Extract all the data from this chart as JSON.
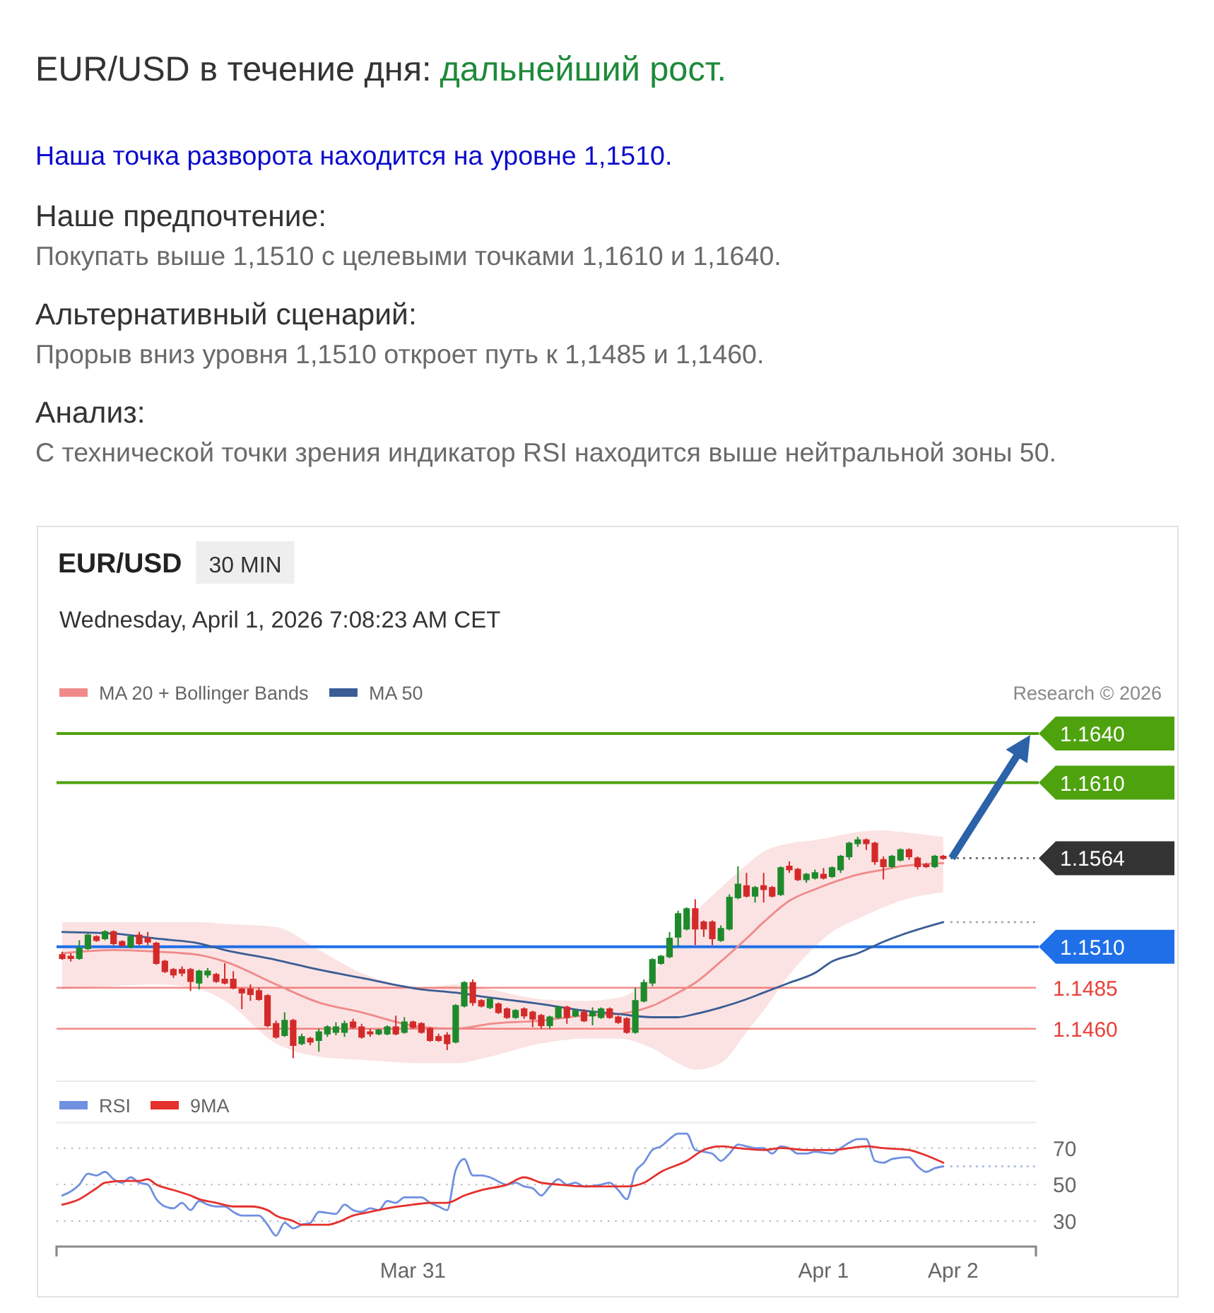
{
  "chart_data": [
    {
      "type": "other",
      "title": "EUR/USD в течение дня:",
      "subtitle": "дальнейший рост.",
      "annotations": [
        "Наша точка разворота находится на уровне 1,1510.",
        "Наше предпочтение:",
        "Покупать выше 1,1510 с целевыми точками 1,1610 и 1,1640.",
        "Альтернативный сценарий:",
        "Прорыв вниз уровня 1,1510 откроет путь к 1,1485 и 1,1460.",
        "Анализ:",
        "С технической точки зрения индикатор RSI находится выше нейтральной зоны 50."
      ]
    },
    {
      "type": "candlestick",
      "title": "EUR/USD",
      "subtitle": "30 MIN",
      "annotations": [
        "Wednesday, April 1, 2026 7:08:23 AM CET",
        "Research © 2026"
      ],
      "legend": "top left",
      "xlim": [
        "2026-03-30T03:10",
        "2026-04-01T12:25"
      ],
      "ylim": [
        1.1428,
        1.164
      ],
      "x": [
        "2026-03-30T03:30",
        "2026-03-30T04:00",
        "2026-03-30T04:30",
        "2026-03-30T05:00",
        "2026-03-30T05:30",
        "2026-03-30T06:00",
        "2026-03-30T06:30",
        "2026-03-30T07:00",
        "2026-03-30T07:30",
        "2026-03-30T08:00",
        "2026-03-30T08:30",
        "2026-03-30T09:00",
        "2026-03-30T09:30",
        "2026-03-30T10:00",
        "2026-03-30T10:30",
        "2026-03-30T11:00",
        "2026-03-30T11:30",
        "2026-03-30T12:00",
        "2026-03-30T12:30",
        "2026-03-30T13:00",
        "2026-03-30T13:30",
        "2026-03-30T14:00",
        "2026-03-30T14:30",
        "2026-03-30T15:00",
        "2026-03-30T15:30",
        "2026-03-30T16:00",
        "2026-03-30T16:30",
        "2026-03-30T17:00",
        "2026-03-30T17:30",
        "2026-03-30T18:00",
        "2026-03-30T18:30",
        "2026-03-30T19:00",
        "2026-03-30T19:30",
        "2026-03-30T20:00",
        "2026-03-30T20:30",
        "2026-03-30T21:00",
        "2026-03-30T21:30",
        "2026-03-30T22:00",
        "2026-03-30T22:30",
        "2026-03-30T23:00",
        "2026-03-30T23:30",
        "2026-03-31T00:00",
        "2026-03-31T00:30",
        "2026-03-31T01:00",
        "2026-03-31T01:30",
        "2026-03-31T02:00",
        "2026-03-31T02:30",
        "2026-03-31T03:00",
        "2026-03-31T03:30",
        "2026-03-31T04:00",
        "2026-03-31T04:30",
        "2026-03-31T05:00",
        "2026-03-31T05:30",
        "2026-03-31T06:00",
        "2026-03-31T06:30",
        "2026-03-31T07:00",
        "2026-03-31T07:30",
        "2026-03-31T08:00",
        "2026-03-31T08:30",
        "2026-03-31T09:00",
        "2026-03-31T09:30",
        "2026-03-31T10:00",
        "2026-03-31T10:30",
        "2026-03-31T11:00",
        "2026-03-31T11:30",
        "2026-03-31T12:00",
        "2026-03-31T12:30",
        "2026-03-31T13:00",
        "2026-03-31T13:30",
        "2026-03-31T14:00",
        "2026-03-31T14:30",
        "2026-03-31T15:00",
        "2026-03-31T15:30",
        "2026-03-31T16:00",
        "2026-03-31T16:30",
        "2026-03-31T17:00",
        "2026-03-31T17:30",
        "2026-03-31T18:00",
        "2026-03-31T18:30",
        "2026-03-31T19:00",
        "2026-03-31T19:30",
        "2026-03-31T20:00",
        "2026-03-31T20:30",
        "2026-03-31T21:00",
        "2026-03-31T21:30",
        "2026-03-31T22:00",
        "2026-03-31T22:30",
        "2026-03-31T23:00",
        "2026-03-31T23:30",
        "2026-04-01T00:00",
        "2026-04-01T00:30",
        "2026-04-01T01:00",
        "2026-04-01T01:30",
        "2026-04-01T02:00",
        "2026-04-01T02:30",
        "2026-04-01T03:00",
        "2026-04-01T03:30",
        "2026-04-01T04:00",
        "2026-04-01T04:30",
        "2026-04-01T05:00",
        "2026-04-01T05:30",
        "2026-04-01T06:00",
        "2026-04-01T06:30",
        "2026-04-01T07:00"
      ],
      "ohlc": [
        [
          1.1505,
          1.1507,
          1.1502,
          1.1503
        ],
        [
          1.1504,
          1.1506,
          1.1501,
          1.1503
        ],
        [
          1.1503,
          1.1514,
          1.1502,
          1.1509
        ],
        [
          1.1509,
          1.1518,
          1.1508,
          1.1517
        ],
        [
          1.1516,
          1.1517,
          1.1513,
          1.1514
        ],
        [
          1.1515,
          1.152,
          1.1514,
          1.1519
        ],
        [
          1.1519,
          1.152,
          1.1511,
          1.1512
        ],
        [
          1.1513,
          1.1514,
          1.151,
          1.1511
        ],
        [
          1.151,
          1.1517,
          1.1509,
          1.1516
        ],
        [
          1.1517,
          1.1519,
          1.1511,
          1.1512
        ],
        [
          1.1515,
          1.1519,
          1.1511,
          1.1513
        ],
        [
          1.1512,
          1.1513,
          1.1499,
          1.15
        ],
        [
          1.1501,
          1.1502,
          1.1494,
          1.1495
        ],
        [
          1.1496,
          1.1497,
          1.1491,
          1.1493
        ],
        [
          1.1496,
          1.1498,
          1.1492,
          1.1494
        ],
        [
          1.1496,
          1.1497,
          1.1483,
          1.1489
        ],
        [
          1.1488,
          1.1496,
          1.1484,
          1.1495
        ],
        [
          1.1493,
          1.1497,
          1.1491,
          1.1495
        ],
        [
          1.1493,
          1.1494,
          1.1488,
          1.1489
        ],
        [
          1.149,
          1.15,
          1.1487,
          1.1488
        ],
        [
          1.149,
          1.1495,
          1.1484,
          1.1485
        ],
        [
          1.1484,
          1.1485,
          1.1472,
          1.1482
        ],
        [
          1.1484,
          1.1487,
          1.1477,
          1.1481
        ],
        [
          1.1483,
          1.1485,
          1.1477,
          1.1478
        ],
        [
          1.148,
          1.1481,
          1.1461,
          1.1462
        ],
        [
          1.1463,
          1.1465,
          1.1454,
          1.1455
        ],
        [
          1.1456,
          1.147,
          1.1455,
          1.1465
        ],
        [
          1.1465,
          1.1466,
          1.1442,
          1.145
        ],
        [
          1.1451,
          1.1457,
          1.145,
          1.1455
        ],
        [
          1.1454,
          1.1455,
          1.145,
          1.1452
        ],
        [
          1.1453,
          1.146,
          1.1446,
          1.1458
        ],
        [
          1.1457,
          1.1462,
          1.1455,
          1.1461
        ],
        [
          1.1458,
          1.1464,
          1.1456,
          1.1461
        ],
        [
          1.1458,
          1.1465,
          1.1455,
          1.1463
        ],
        [
          1.1464,
          1.1466,
          1.146,
          1.1461
        ],
        [
          1.1461,
          1.1463,
          1.1454,
          1.1455
        ],
        [
          1.1458,
          1.146,
          1.1455,
          1.1457
        ],
        [
          1.1457,
          1.146,
          1.1456,
          1.1459
        ],
        [
          1.1457,
          1.1462,
          1.1456,
          1.1461
        ],
        [
          1.1461,
          1.1468,
          1.1456,
          1.1457
        ],
        [
          1.1458,
          1.1467,
          1.1457,
          1.1464
        ],
        [
          1.1464,
          1.1465,
          1.146,
          1.1461
        ],
        [
          1.1463,
          1.1464,
          1.1457,
          1.1458
        ],
        [
          1.146,
          1.1461,
          1.1452,
          1.1453
        ],
        [
          1.1455,
          1.1457,
          1.1452,
          1.1453
        ],
        [
          1.1456,
          1.1458,
          1.1447,
          1.1451
        ],
        [
          1.1452,
          1.1475,
          1.1451,
          1.1474
        ],
        [
          1.1474,
          1.1489,
          1.1473,
          1.1488
        ],
        [
          1.1488,
          1.149,
          1.1474,
          1.1476
        ],
        [
          1.1477,
          1.1478,
          1.1473,
          1.1474
        ],
        [
          1.1473,
          1.1479,
          1.1472,
          1.1478
        ],
        [
          1.1475,
          1.1476,
          1.1469,
          1.147
        ],
        [
          1.1472,
          1.1473,
          1.1466,
          1.1467
        ],
        [
          1.1467,
          1.1472,
          1.1466,
          1.1471
        ],
        [
          1.1472,
          1.1473,
          1.1466,
          1.1468
        ],
        [
          1.147,
          1.1471,
          1.1461,
          1.1466
        ],
        [
          1.1468,
          1.1469,
          1.146,
          1.1462
        ],
        [
          1.1462,
          1.1468,
          1.146,
          1.1467
        ],
        [
          1.1467,
          1.1474,
          1.1466,
          1.1473
        ],
        [
          1.1473,
          1.1474,
          1.1463,
          1.1467
        ],
        [
          1.1468,
          1.1472,
          1.1467,
          1.1471
        ],
        [
          1.147,
          1.1472,
          1.1464,
          1.1465
        ],
        [
          1.1468,
          1.1473,
          1.1462,
          1.147
        ],
        [
          1.1467,
          1.1473,
          1.1466,
          1.1472
        ],
        [
          1.1472,
          1.1473,
          1.1466,
          1.1467
        ],
        [
          1.1467,
          1.1468,
          1.1463,
          1.1464
        ],
        [
          1.1466,
          1.1467,
          1.1457,
          1.1458
        ],
        [
          1.1458,
          1.1485,
          1.1457,
          1.1477
        ],
        [
          1.1477,
          1.149,
          1.1476,
          1.1488
        ],
        [
          1.1488,
          1.1503,
          1.1486,
          1.1502
        ],
        [
          1.15,
          1.1505,
          1.1499,
          1.1504
        ],
        [
          1.1504,
          1.1519,
          1.1503,
          1.1515
        ],
        [
          1.1516,
          1.1532,
          1.151,
          1.153
        ],
        [
          1.1521,
          1.1534,
          1.152,
          1.1533
        ],
        [
          1.1533,
          1.1539,
          1.1511,
          1.1521
        ],
        [
          1.1525,
          1.1526,
          1.1516,
          1.1521
        ],
        [
          1.1525,
          1.1526,
          1.1511,
          1.1515
        ],
        [
          1.1514,
          1.1523,
          1.1513,
          1.1521
        ],
        [
          1.1521,
          1.1542,
          1.152,
          1.154
        ],
        [
          1.154,
          1.1559,
          1.1539,
          1.1548
        ],
        [
          1.1547,
          1.1555,
          1.154,
          1.1541
        ],
        [
          1.1541,
          1.1547,
          1.1537,
          1.1546
        ],
        [
          1.1547,
          1.1555,
          1.1537,
          1.1545
        ],
        [
          1.1546,
          1.1547,
          1.154,
          1.1541
        ],
        [
          1.1542,
          1.1559,
          1.1541,
          1.1558
        ],
        [
          1.1559,
          1.1562,
          1.1555,
          1.1557
        ],
        [
          1.1557,
          1.1558,
          1.155,
          1.1551
        ],
        [
          1.1551,
          1.1555,
          1.1549,
          1.1554
        ],
        [
          1.1552,
          1.1557,
          1.1551,
          1.1555
        ],
        [
          1.1554,
          1.1558,
          1.1551,
          1.1552
        ],
        [
          1.1553,
          1.1559,
          1.1552,
          1.1558
        ],
        [
          1.1557,
          1.1566,
          1.1555,
          1.1565
        ],
        [
          1.1565,
          1.1574,
          1.1563,
          1.1573
        ],
        [
          1.1573,
          1.1577,
          1.1571,
          1.1575
        ],
        [
          1.1575,
          1.1576,
          1.1569,
          1.1573
        ],
        [
          1.1573,
          1.1574,
          1.156,
          1.1562
        ],
        [
          1.1563,
          1.1565,
          1.1551,
          1.1559
        ],
        [
          1.1559,
          1.1566,
          1.1558,
          1.1565
        ],
        [
          1.1563,
          1.157,
          1.1562,
          1.1569
        ],
        [
          1.1569,
          1.157,
          1.1563,
          1.1565
        ],
        [
          1.1564,
          1.1565,
          1.1557,
          1.1559
        ],
        [
          1.156,
          1.1561,
          1.1558,
          1.1559
        ],
        [
          1.1559,
          1.1566,
          1.1558,
          1.1565
        ],
        [
          1.1565,
          1.1566,
          1.1563,
          1.1564
        ]
      ],
      "series": [
        {
          "name": "MA 20 + Bollinger Bands",
          "type": "line",
          "color": "#f08a8a",
          "x": [
            "2026-03-30T03:30",
            "2026-03-30T06:30",
            "2026-03-30T09:00",
            "2026-03-30T11:30",
            "2026-03-30T13:00",
            "2026-03-30T16:00",
            "2026-03-30T18:30",
            "2026-03-30T21:00",
            "2026-03-31T00:30",
            "2026-03-31T02:30",
            "2026-03-31T04:30",
            "2026-03-31T07:30",
            "2026-03-31T10:00",
            "2026-03-31T12:00",
            "2026-03-31T14:00",
            "2026-03-31T15:30",
            "2026-03-31T16:30",
            "2026-03-31T18:00",
            "2026-03-31T19:30",
            "2026-03-31T20:30",
            "2026-03-31T22:00",
            "2026-03-31T23:30",
            "2026-04-01T00:30",
            "2026-04-01T02:00",
            "2026-04-01T03:30",
            "2026-04-01T04:30",
            "2026-04-01T07:00"
          ],
          "values": [
            1.1506,
            1.1508,
            1.1507,
            1.1505,
            1.1501,
            1.1487,
            1.1476,
            1.147,
            1.1461,
            1.146,
            1.1463,
            1.1465,
            1.1468,
            1.1469,
            1.1474,
            1.1482,
            1.1488,
            1.1501,
            1.1515,
            1.1525,
            1.1538,
            1.1545,
            1.1549,
            1.1554,
            1.1557,
            1.1559,
            1.1561
          ],
          "upper": [
            1.1525,
            1.1525,
            1.1525,
            1.1525,
            1.1524,
            1.1522,
            1.1508,
            1.1494,
            1.1485,
            1.1487,
            1.1484,
            1.1478,
            1.1477,
            1.1479,
            1.1493,
            1.1519,
            1.1531,
            1.1546,
            1.156,
            1.1568,
            1.1573,
            1.1575,
            1.1577,
            1.158,
            1.1581,
            1.158,
            1.1577
          ],
          "lower": [
            1.1484,
            1.1486,
            1.1487,
            1.1484,
            1.1477,
            1.1451,
            1.1443,
            1.1441,
            1.1439,
            1.1439,
            1.1443,
            1.1451,
            1.1454,
            1.1454,
            1.1448,
            1.1439,
            1.1435,
            1.1439,
            1.1458,
            1.1471,
            1.1493,
            1.151,
            1.1519,
            1.1527,
            1.1534,
            1.1538,
            1.1543
          ]
        },
        {
          "name": "MA 50",
          "type": "line",
          "color": "#3a5d94",
          "x": [
            "2026-03-30T03:30",
            "2026-03-30T06:30",
            "2026-03-30T09:00",
            "2026-03-30T11:30",
            "2026-03-30T13:00",
            "2026-03-30T16:00",
            "2026-03-30T18:30",
            "2026-03-30T21:00",
            "2026-03-31T00:30",
            "2026-03-31T02:30",
            "2026-03-31T04:30",
            "2026-03-31T07:30",
            "2026-03-31T10:00",
            "2026-03-31T12:00",
            "2026-03-31T14:00",
            "2026-03-31T15:30",
            "2026-03-31T16:30",
            "2026-03-31T18:00",
            "2026-03-31T19:30",
            "2026-03-31T20:30",
            "2026-03-31T22:00",
            "2026-03-31T23:30",
            "2026-04-01T00:30",
            "2026-04-01T02:00",
            "2026-04-01T03:30",
            "2026-04-01T04:30",
            "2026-04-01T07:00"
          ],
          "values": [
            1.1519,
            1.1518,
            1.1515,
            1.1512,
            1.1508,
            1.1502,
            1.1496,
            1.1491,
            1.1484,
            1.1482,
            1.1479,
            1.1475,
            1.1471,
            1.1469,
            1.1467,
            1.1467,
            1.1469,
            1.1473,
            1.1478,
            1.1482,
            1.1488,
            1.1494,
            1.1501,
            1.1506,
            1.1513,
            1.1517,
            1.1525
          ]
        }
      ],
      "ref_lines": [
        {
          "axis": "y",
          "value": 1.164,
          "label": "1.1640",
          "color": "#4ea20e"
        },
        {
          "axis": "y",
          "value": 1.161,
          "label": "1.1610",
          "color": "#4ea20e"
        },
        {
          "axis": "y",
          "value": 1.1564,
          "label": "1.1564",
          "color": "#333333",
          "line_style": "dotted"
        },
        {
          "axis": "y",
          "value": 1.151,
          "label": "1.1510",
          "color": "#1f6fe8"
        },
        {
          "axis": "y",
          "value": 1.1485,
          "label": "1.1485",
          "color": "#e8403a"
        },
        {
          "axis": "y",
          "value": 1.146,
          "label": "1.1460",
          "color": "#e8403a"
        },
        {
          "axis": "y",
          "value": 1.1525,
          "color": "#8a8a8a",
          "line_style": "dotted"
        }
      ]
    },
    {
      "type": "line",
      "legend": "top left",
      "grid": "y",
      "annotations": [
        "Apr 2"
      ],
      "xlim": [
        "2026-03-30T03:10",
        "2026-04-01T12:25"
      ],
      "ylim": [
        16,
        84
      ],
      "yticks": [
        30,
        50,
        70
      ],
      "xticks": [
        {
          "value": "2026-03-31T00:00",
          "label": "Mar 31"
        },
        {
          "value": "2026-04-01T00:00",
          "label": "Apr 1"
        }
      ],
      "series": [
        {
          "name": "RSI",
          "color": "#7090e0",
          "x": [
            "2026-03-30T03:30",
            "2026-03-30T04:30",
            "2026-03-30T05:00",
            "2026-03-30T05:30",
            "2026-03-30T06:00",
            "2026-03-30T06:30",
            "2026-03-30T07:00",
            "2026-03-30T07:30",
            "2026-03-30T08:00",
            "2026-03-30T08:30",
            "2026-03-30T09:00",
            "2026-03-30T09:30",
            "2026-03-30T10:00",
            "2026-03-30T10:30",
            "2026-03-30T11:00",
            "2026-03-30T11:30",
            "2026-03-30T12:00",
            "2026-03-30T12:30",
            "2026-03-30T13:00",
            "2026-03-30T13:30",
            "2026-03-30T14:00",
            "2026-03-30T15:00",
            "2026-03-30T15:30",
            "2026-03-30T16:00",
            "2026-03-30T16:30",
            "2026-03-30T17:00",
            "2026-03-30T17:30",
            "2026-03-30T18:00",
            "2026-03-30T18:30",
            "2026-03-30T19:30",
            "2026-03-30T20:00",
            "2026-03-30T20:30",
            "2026-03-30T21:00",
            "2026-03-30T21:30",
            "2026-03-30T22:00",
            "2026-03-30T22:30",
            "2026-03-30T23:00",
            "2026-03-30T23:30",
            "2026-03-31T00:30",
            "2026-03-31T01:00",
            "2026-03-31T01:30",
            "2026-03-31T02:00",
            "2026-03-31T02:30",
            "2026-03-31T03:00",
            "2026-03-31T03:30",
            "2026-03-31T04:00",
            "2026-03-31T04:30",
            "2026-03-31T05:30",
            "2026-03-31T06:00",
            "2026-03-31T06:30",
            "2026-03-31T07:00",
            "2026-03-31T07:30",
            "2026-03-31T08:00",
            "2026-03-31T08:30",
            "2026-03-31T09:00",
            "2026-03-31T09:30",
            "2026-03-31T10:00",
            "2026-03-31T11:00",
            "2026-03-31T11:30",
            "2026-03-31T12:00",
            "2026-03-31T12:30",
            "2026-03-31T13:00",
            "2026-03-31T13:30",
            "2026-03-31T14:00",
            "2026-03-31T14:30",
            "2026-03-31T15:00",
            "2026-03-31T15:30",
            "2026-03-31T16:00",
            "2026-03-31T16:30",
            "2026-03-31T17:00",
            "2026-03-31T17:30",
            "2026-03-31T18:00",
            "2026-03-31T18:30",
            "2026-03-31T19:00",
            "2026-03-31T19:30",
            "2026-03-31T20:00",
            "2026-03-31T20:30",
            "2026-03-31T21:00",
            "2026-03-31T21:30",
            "2026-03-31T22:00",
            "2026-03-31T22:30",
            "2026-03-31T23:00",
            "2026-03-31T23:30",
            "2026-04-01T00:30",
            "2026-04-01T01:00",
            "2026-04-01T01:30",
            "2026-04-01T02:00",
            "2026-04-01T02:30",
            "2026-04-01T03:00",
            "2026-04-01T03:30",
            "2026-04-01T04:00",
            "2026-04-01T05:00",
            "2026-04-01T05:30",
            "2026-04-01T06:00",
            "2026-04-01T06:30",
            "2026-04-01T07:00"
          ],
          "values": [
            44,
            50,
            56,
            55,
            57,
            53,
            51,
            54,
            51,
            50,
            42,
            38,
            37,
            40,
            36,
            41,
            39,
            38,
            38,
            35,
            33,
            33,
            28,
            22,
            29,
            26,
            28,
            29,
            35,
            34,
            39,
            36,
            35,
            37,
            36,
            41,
            40,
            43,
            43,
            40,
            38,
            36,
            58,
            64,
            55,
            55,
            54,
            50,
            51,
            49,
            48,
            44,
            49,
            53,
            50,
            51,
            49,
            50,
            51,
            47,
            42,
            57,
            62,
            69,
            71,
            75,
            78,
            78,
            69,
            68,
            67,
            63,
            67,
            72,
            71,
            70,
            70,
            67,
            71,
            70,
            67,
            67,
            68,
            67,
            70,
            73,
            75,
            75,
            63,
            62,
            64,
            65,
            60,
            57,
            59,
            60
          ]
        },
        {
          "name": "9MA",
          "color": "#e5312d",
          "x": [
            "2026-03-30T03:30",
            "2026-03-30T04:30",
            "2026-03-30T05:30",
            "2026-03-30T06:00",
            "2026-03-30T07:00",
            "2026-03-30T08:00",
            "2026-03-30T08:30",
            "2026-03-30T09:00",
            "2026-03-30T10:00",
            "2026-03-30T11:00",
            "2026-03-30T11:30",
            "2026-03-30T12:30",
            "2026-03-30T13:30",
            "2026-03-30T14:30",
            "2026-03-30T15:30",
            "2026-03-30T16:00",
            "2026-03-30T17:00",
            "2026-03-30T17:30",
            "2026-03-30T19:00",
            "2026-03-30T19:30",
            "2026-03-30T20:30",
            "2026-03-30T21:30",
            "2026-03-30T22:30",
            "2026-03-31T00:00",
            "2026-03-31T01:00",
            "2026-03-31T02:00",
            "2026-03-31T03:00",
            "2026-03-31T04:00",
            "2026-03-31T05:30",
            "2026-03-31T06:30",
            "2026-03-31T07:30",
            "2026-03-31T08:30",
            "2026-03-31T10:00",
            "2026-03-31T11:30",
            "2026-03-31T12:30",
            "2026-03-31T13:30",
            "2026-03-31T14:30",
            "2026-03-31T16:00",
            "2026-03-31T17:00",
            "2026-03-31T18:00",
            "2026-03-31T19:00",
            "2026-03-31T20:30",
            "2026-03-31T21:30",
            "2026-03-31T23:00",
            "2026-04-01T00:30",
            "2026-04-01T01:30",
            "2026-04-01T02:30",
            "2026-04-01T03:30",
            "2026-04-01T05:00",
            "2026-04-01T06:00",
            "2026-04-01T07:00"
          ],
          "values": [
            39,
            42,
            48,
            51,
            52,
            52,
            53,
            50,
            47,
            44,
            42,
            40,
            38,
            38,
            36,
            33,
            30,
            28,
            28,
            29,
            33,
            35,
            37,
            39,
            40,
            40,
            44,
            47,
            50,
            54,
            51,
            50,
            49,
            49,
            49,
            51,
            57,
            63,
            69,
            71,
            70,
            69,
            70,
            69,
            69,
            70,
            71,
            70,
            69,
            66,
            62
          ]
        }
      ],
      "ref_lines": [
        {
          "axis": "y",
          "value": 60,
          "color": "#8a9bd8",
          "line_style": "dotted"
        }
      ]
    }
  ]
}
